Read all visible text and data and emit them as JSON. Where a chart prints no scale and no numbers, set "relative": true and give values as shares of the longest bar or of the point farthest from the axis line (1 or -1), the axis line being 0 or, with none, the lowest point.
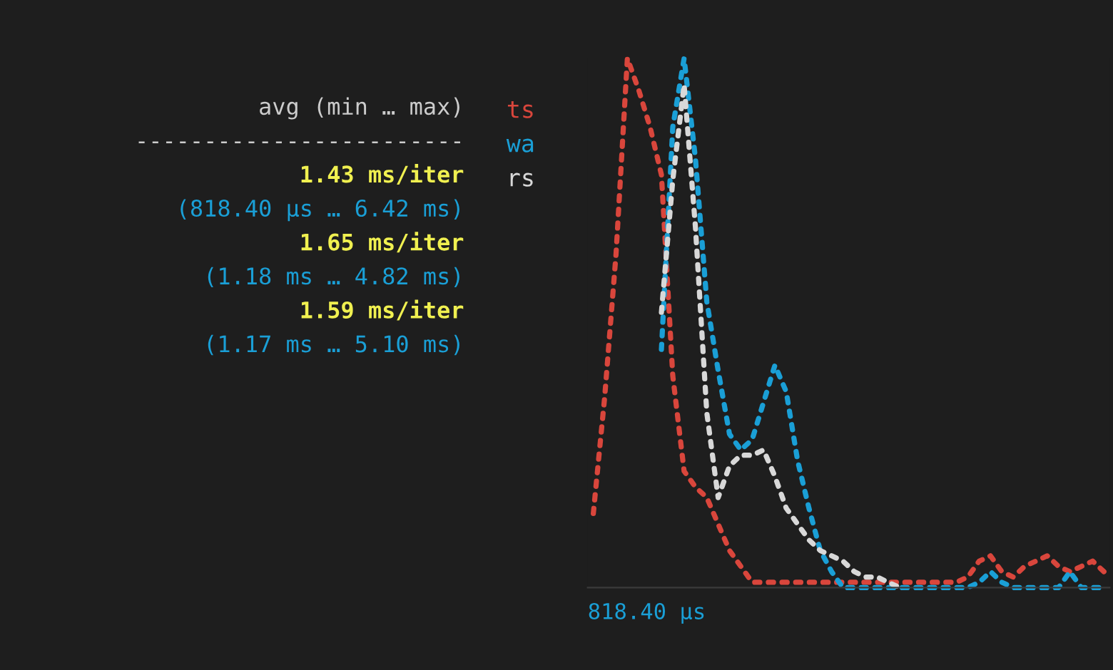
{
  "chart_data": {
    "type": "line",
    "relative": true,
    "xlabel": "818.40 µs",
    "legend": "left",
    "line_style": "dotted",
    "grid": false,
    "categories": [
      null,
      null,
      null,
      null,
      null,
      null,
      null,
      null,
      null,
      null,
      null,
      null,
      null,
      null,
      null,
      null,
      null,
      null,
      null,
      null,
      null,
      null,
      null,
      null,
      null,
      null,
      null,
      null,
      null,
      null,
      null,
      null,
      null,
      null,
      null,
      null,
      null,
      null,
      null,
      null,
      null,
      null,
      null,
      null,
      null,
      null
    ],
    "series": [
      {
        "name": "ts",
        "color": "#d9463c",
        "values": [
          0.14,
          0.36,
          0.63,
          1.0,
          0.94,
          0.87,
          0.78,
          0.4,
          0.22,
          0.19,
          0.17,
          0.12,
          0.07,
          0.04,
          0.01,
          0.01,
          0.01,
          0.01,
          0.01,
          0.01,
          0.01,
          0.01,
          0.01,
          0.01,
          0.01,
          0.01,
          0.01,
          0.01,
          0.01,
          0.01,
          0.01,
          0.01,
          0.01,
          0.02,
          0.05,
          0.06,
          0.03,
          0.02,
          0.04,
          0.05,
          0.06,
          0.04,
          0.03,
          0.04,
          0.05,
          0.03
        ]
      },
      {
        "name": "wa",
        "color": "#1a9fd6",
        "values": [
          null,
          null,
          null,
          null,
          null,
          null,
          0.45,
          0.87,
          1.0,
          0.81,
          0.54,
          0.41,
          0.29,
          0.26,
          0.28,
          0.35,
          0.42,
          0.37,
          0.24,
          0.15,
          0.07,
          0.03,
          0.0,
          0.0,
          0.0,
          0.0,
          0.0,
          0.0,
          0.0,
          0.0,
          0.0,
          0.0,
          0.0,
          0.0,
          0.01,
          0.03,
          0.01,
          0.0,
          0.0,
          0.0,
          0.0,
          0.0,
          0.03,
          0.0,
          0.0,
          0.0
        ]
      },
      {
        "name": "rs",
        "color": "#d8d8d8",
        "values": [
          null,
          null,
          null,
          null,
          null,
          null,
          0.52,
          0.77,
          0.95,
          0.68,
          0.33,
          0.17,
          0.23,
          0.25,
          0.25,
          0.26,
          0.21,
          0.15,
          0.12,
          0.09,
          0.07,
          0.06,
          0.05,
          0.03,
          0.02,
          0.02,
          0.01,
          0.0,
          null,
          null,
          null,
          null,
          null,
          null,
          null,
          null,
          null,
          null,
          null,
          null,
          null,
          null,
          null,
          null,
          null,
          null
        ]
      }
    ],
    "annotations": [
      "avg (min … max)",
      "------------------------",
      "1.43 ms/iter",
      "(818.40 µs … 6.42 ms)",
      "1.65 ms/iter",
      "(1.18 ms … 4.82 ms)",
      "1.59 ms/iter",
      "(1.17 ms … 5.10 ms)"
    ]
  }
}
